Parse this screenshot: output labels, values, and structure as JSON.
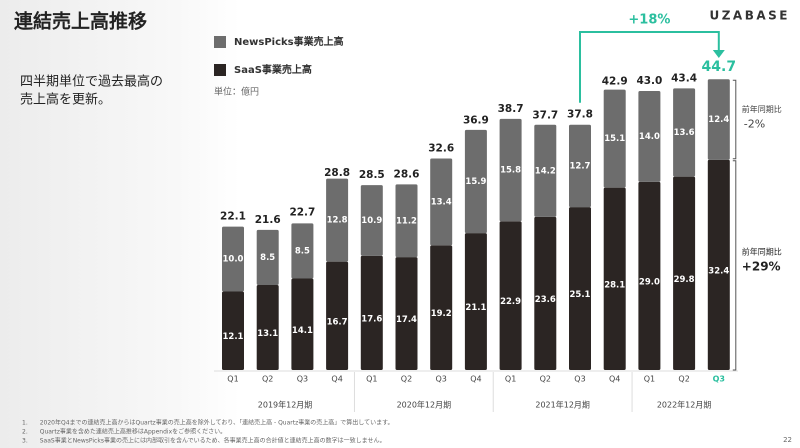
{
  "chart_data": {
    "type": "stacked_bar",
    "title": "連結売上高推移",
    "subtitle": [
      "四半期単位で過去最高の",
      "売上高を更新。"
    ],
    "brand": "UZABASE",
    "unit": "単位：億円",
    "categories": [
      "Q1",
      "Q2",
      "Q3",
      "Q4",
      "Q1",
      "Q2",
      "Q3",
      "Q4",
      "Q1",
      "Q2",
      "Q3",
      "Q4",
      "Q1",
      "Q2",
      "Q3"
    ],
    "year_labels": [
      "2019年12月期",
      "2020年12月期",
      "2021年12月期",
      "2022年12月期"
    ],
    "series": [
      {
        "name": "SaaS事業売上高",
        "color": "#2b2523",
        "values": [
          12.1,
          13.1,
          14.1,
          16.7,
          17.6,
          17.4,
          19.2,
          21.1,
          22.9,
          23.6,
          25.1,
          28.1,
          29.0,
          29.8,
          32.4
        ],
        "value_labels": [
          "12.1",
          "13.1",
          "14.1",
          "16.7",
          "17.6",
          "17.4",
          "19.2",
          "21.1",
          "22.9",
          "23.6",
          "25.1",
          "28.1",
          "29.0",
          "29.8",
          "32.4"
        ]
      },
      {
        "name": "NewsPicks事業売上高",
        "color": "#6d6d6d",
        "values": [
          10.0,
          8.5,
          8.5,
          12.8,
          10.9,
          11.2,
          13.4,
          15.9,
          15.8,
          14.2,
          12.7,
          15.1,
          14.0,
          13.6,
          12.4
        ],
        "value_labels": [
          "10.0",
          "8.5",
          "8.5",
          "12.8",
          "10.9",
          "11.2",
          "13.4",
          "15.9",
          "15.8",
          "14.2",
          "12.7",
          "15.1",
          "14.0",
          "13.6",
          "12.4"
        ]
      }
    ],
    "totals": {
      "values": [
        22.1,
        21.6,
        22.7,
        28.8,
        28.5,
        28.6,
        32.6,
        36.9,
        38.7,
        37.7,
        37.8,
        42.9,
        43.0,
        43.4,
        44.7
      ],
      "value_labels": [
        "22.1",
        "21.6",
        "22.7",
        "28.8",
        "28.5",
        "28.6",
        "32.6",
        "36.9",
        "38.7",
        "37.7",
        "37.8",
        "42.9",
        "43.0",
        "43.4",
        "44.7"
      ]
    },
    "ylim": [
      0,
      45
    ],
    "highlight_color": "#2bbf9f",
    "growth_label": "+18%",
    "yoy_label": "前年同期比",
    "yoy_newspicks": "-2%",
    "yoy_saas": "+29%",
    "footnotes": [
      "1.　　2020年Q4までの連結売上高からはQuartz事業の売上高を除外しており、「連結売上高 - Quartz事業の売上高」で算出しています。",
      "2.　　Quartz事業を含めた連結売上高推移はAppendixをご参照ください。",
      "3.　　SaaS事業とNewsPicks事業の売上には内部取引を含んでいるため、各事業売上高の合計値と連結売上高の数字は一致しません。"
    ],
    "page": "22"
  }
}
